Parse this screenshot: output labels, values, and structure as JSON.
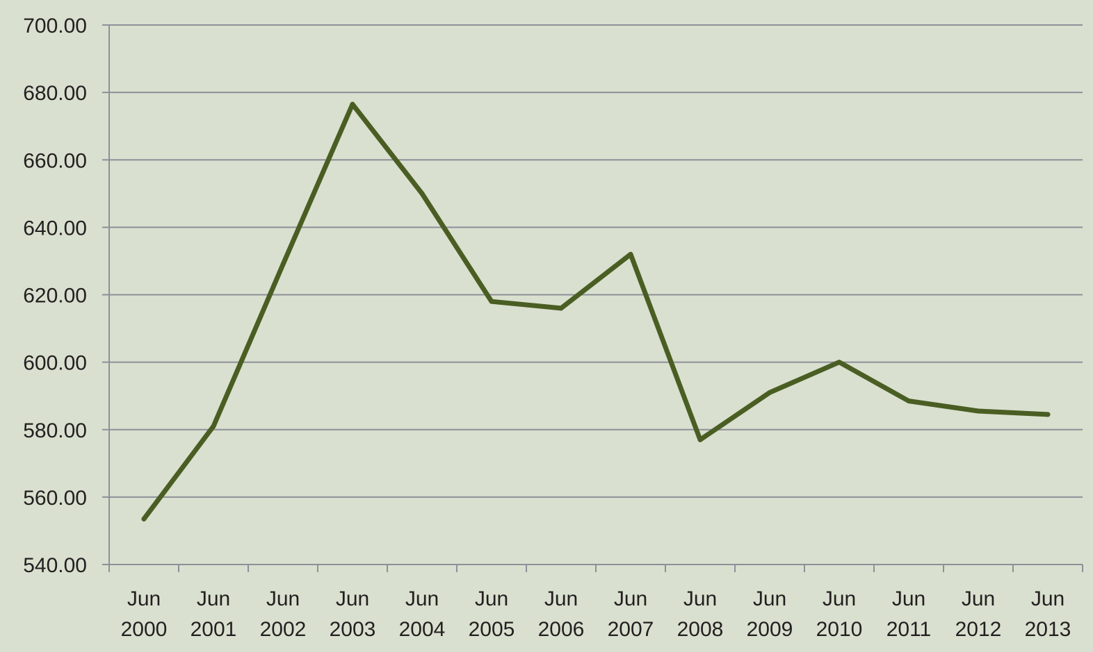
{
  "chart_data": {
    "type": "line",
    "title": "",
    "xlabel": "",
    "ylabel": "",
    "categories": [
      [
        "Jun",
        "2000"
      ],
      [
        "Jun",
        "2001"
      ],
      [
        "Jun",
        "2002"
      ],
      [
        "Jun",
        "2003"
      ],
      [
        "Jun",
        "2004"
      ],
      [
        "Jun",
        "2005"
      ],
      [
        "Jun",
        "2006"
      ],
      [
        "Jun",
        "2007"
      ],
      [
        "Jun",
        "2008"
      ],
      [
        "Jun",
        "2009"
      ],
      [
        "Jun",
        "2010"
      ],
      [
        "Jun",
        "2011"
      ],
      [
        "Jun",
        "2012"
      ],
      [
        "Jun",
        "2013"
      ]
    ],
    "series": [
      {
        "values": [
          553.5,
          581.0,
          629.0,
          676.5,
          650.0,
          618.0,
          616.0,
          632.0,
          577.0,
          591.0,
          600.0,
          588.5,
          585.5,
          584.5
        ],
        "color": "#4a5e23"
      }
    ],
    "ylim": [
      540,
      700
    ],
    "y_ticks": [
      "540.00",
      "560.00",
      "580.00",
      "600.00",
      "620.00",
      "640.00",
      "660.00",
      "680.00",
      "700.00"
    ],
    "grid": true,
    "legend": "none",
    "background_color": "#d9e0cf",
    "gridline_color": "#8d9099"
  }
}
